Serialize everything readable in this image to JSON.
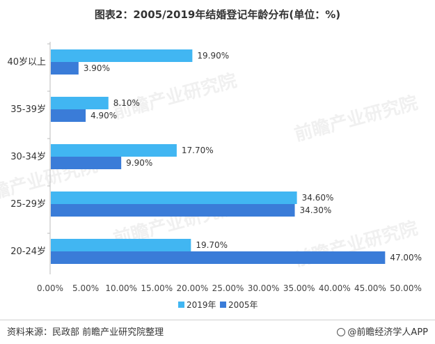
{
  "title": "图表2：2005/2019年结婚登记年龄分布(单位：%)",
  "footer": {
    "source": "资料来源：民政部 前瞻产业研究院整理",
    "brand": "@前瞻经济学人APP"
  },
  "watermark": "前瞻产业研究院",
  "colors": {
    "series_2019": "#41b6f2",
    "series_2005": "#3a7cd8"
  },
  "chart_data": {
    "type": "bar",
    "orientation": "horizontal",
    "categories": [
      "40岁以上",
      "35-39岁",
      "30-34岁",
      "25-29岁",
      "20-24岁"
    ],
    "series": [
      {
        "name": "2019年",
        "values": [
          19.9,
          8.1,
          17.7,
          34.6,
          19.7
        ],
        "labels": [
          "19.90%",
          "8.10%",
          "17.70%",
          "34.60%",
          "19.70%"
        ]
      },
      {
        "name": "2005年",
        "values": [
          3.9,
          4.9,
          9.9,
          34.3,
          47.0
        ],
        "labels": [
          "3.90%",
          "4.90%",
          "9.90%",
          "34.30%",
          "47.00%"
        ]
      }
    ],
    "xlim": [
      0,
      50
    ],
    "xticks": [
      "0.00%",
      "5.00%",
      "10.00%",
      "15.00%",
      "20.00%",
      "25.00%",
      "30.00%",
      "35.00%",
      "40.00%",
      "45.00%",
      "50.00%"
    ],
    "legend": "bottom",
    "grid": false
  }
}
